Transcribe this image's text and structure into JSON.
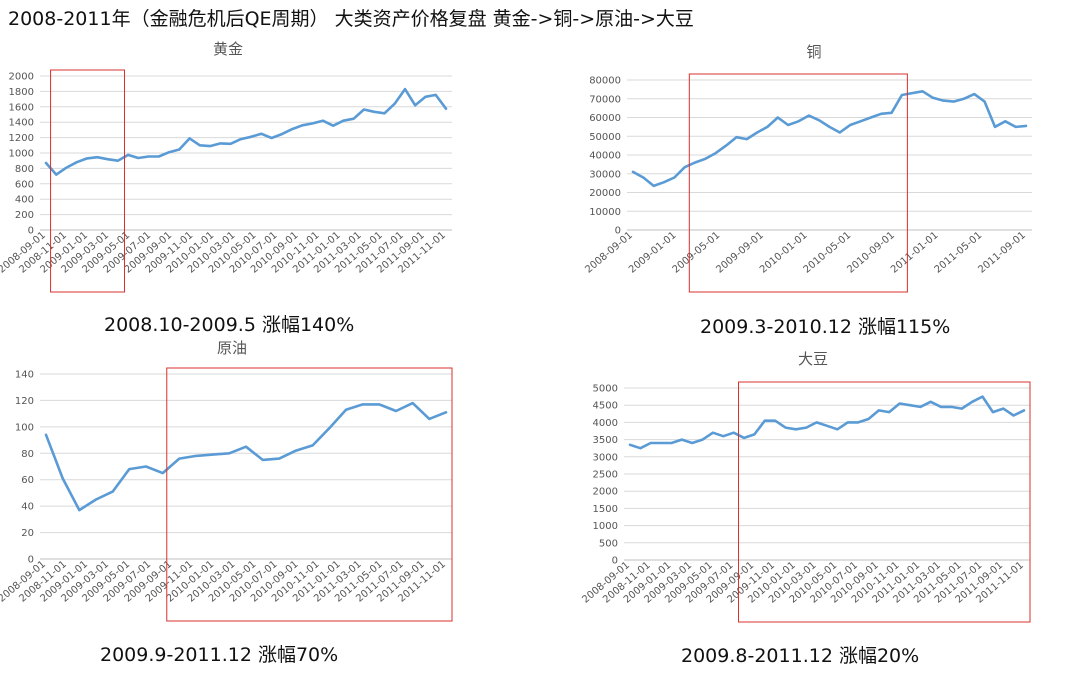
{
  "page": {
    "title": "2008-2011年（金融危机后QE周期） 大类资产价格复盘    黄金->铜->原油->大豆"
  },
  "charts": {
    "gold": {
      "caption": "2008.10-2009.5  涨幅140%"
    },
    "copper": {
      "caption": "2009.3-2010.12 涨幅115%"
    },
    "oil": {
      "caption": "2009.9-2011.12  涨幅70%"
    },
    "soy": {
      "caption": "2009.8-2011.12  涨幅20%"
    }
  },
  "colors": {
    "line": "#5b9bd5",
    "highlight": "#d9302c",
    "grid": "#d9d9d9"
  },
  "chart_data": [
    {
      "id": "gold",
      "type": "line",
      "title": "黄金",
      "x_tick_labels": [
        "2008-09-01",
        "2008-11-01",
        "2009-01-01",
        "2009-03-01",
        "2009-05-01",
        "2009-07-01",
        "2009-09-01",
        "2009-11-01",
        "2010-01-01",
        "2010-03-01",
        "2010-05-01",
        "2010-07-01",
        "2010-09-01",
        "2010-11-01",
        "2011-01-01",
        "2011-03-01",
        "2011-05-01",
        "2011-07-01",
        "2011-09-01",
        "2011-11-01"
      ],
      "y_ticks": [
        0,
        200,
        400,
        600,
        800,
        1000,
        1200,
        1400,
        1600,
        1800,
        2000
      ],
      "ylim": [
        0,
        2000
      ],
      "grid": true,
      "series": [
        {
          "values": [
            870,
            720,
            810,
            880,
            930,
            945,
            920,
            900,
            975,
            935,
            955,
            955,
            1010,
            1045,
            1190,
            1100,
            1090,
            1125,
            1120,
            1180,
            1210,
            1250,
            1195,
            1245,
            1310,
            1360,
            1385,
            1420,
            1355,
            1420,
            1445,
            1565,
            1535,
            1515,
            1640,
            1830,
            1620,
            1730,
            1755,
            1575
          ]
        }
      ],
      "highlight": {
        "from": "2008-10",
        "to": "2009-05"
      }
    },
    {
      "id": "copper",
      "type": "line",
      "title": "铜",
      "x_tick_labels": [
        "2008-09-01",
        "2009-01-01",
        "2009-05-01",
        "2009-09-01",
        "2010-01-01",
        "2010-05-01",
        "2010-09-01",
        "2011-01-01",
        "2011-05-01",
        "2011-09-01"
      ],
      "y_ticks": [
        0,
        10000,
        20000,
        30000,
        40000,
        50000,
        60000,
        70000,
        80000
      ],
      "ylim": [
        0,
        80000
      ],
      "grid": true,
      "series": [
        {
          "values": [
            31000,
            28000,
            23500,
            25500,
            28000,
            33500,
            36000,
            38000,
            41000,
            45000,
            49500,
            48500,
            52000,
            55000,
            60000,
            56000,
            58000,
            61000,
            58500,
            55000,
            52000,
            56000,
            58000,
            60000,
            62000,
            62500,
            72000,
            73000,
            74000,
            70500,
            69000,
            68500,
            70000,
            72500,
            68500,
            55000,
            58000,
            55000,
            55500
          ]
        }
      ],
      "highlight": {
        "from": "2009-03",
        "to": "2010-12"
      }
    },
    {
      "id": "oil",
      "type": "line",
      "title": "原油",
      "x_tick_labels": [
        "2008-09-01",
        "2008-11-01",
        "2009-01-01",
        "2009-03-01",
        "2009-05-01",
        "2009-07-01",
        "2009-09-01",
        "2009-11-01",
        "2010-01-01",
        "2010-03-01",
        "2010-05-01",
        "2010-07-01",
        "2010-09-01",
        "2010-11-01",
        "2011-01-01",
        "2011-03-01",
        "2011-05-01",
        "2011-07-01",
        "2011-09-01",
        "2011-11-01"
      ],
      "y_ticks": [
        0,
        20,
        40,
        60,
        80,
        100,
        120,
        140
      ],
      "ylim": [
        0,
        140
      ],
      "grid": true,
      "series": [
        {
          "values": [
            94,
            61,
            37,
            45,
            51,
            68,
            70,
            65,
            76,
            78,
            79,
            80,
            85,
            75,
            76,
            82,
            86,
            99,
            113,
            117,
            117,
            112,
            118,
            106,
            111
          ]
        }
      ],
      "highlight": {
        "from": "2009-09",
        "to": "2011-12"
      }
    },
    {
      "id": "soy",
      "type": "line",
      "title": "大豆",
      "x_tick_labels": [
        "2008-09-01",
        "2008-11-01",
        "2009-01-01",
        "2009-03-01",
        "2009-05-01",
        "2009-07-01",
        "2009-09-01",
        "2009-11-01",
        "2010-01-01",
        "2010-03-01",
        "2010-05-01",
        "2010-07-01",
        "2010-09-01",
        "2010-11-01",
        "2011-01-01",
        "2011-03-01",
        "2011-05-01",
        "2011-07-01",
        "2011-09-01",
        "2011-11-01"
      ],
      "y_ticks": [
        0,
        500,
        1000,
        1500,
        2000,
        2500,
        3000,
        3500,
        4000,
        4500,
        5000
      ],
      "ylim": [
        0,
        5000
      ],
      "grid": true,
      "series": [
        {
          "values": [
            3350,
            3250,
            3400,
            3400,
            3400,
            3500,
            3400,
            3500,
            3700,
            3600,
            3700,
            3550,
            3650,
            4050,
            4050,
            3850,
            3800,
            3850,
            4000,
            3900,
            3800,
            4000,
            4000,
            4100,
            4350,
            4300,
            4550,
            4500,
            4450,
            4600,
            4450,
            4450,
            4400,
            4600,
            4750,
            4300,
            4400,
            4200,
            4350
          ]
        }
      ],
      "highlight": {
        "from": "2009-08",
        "to": "2011-12"
      }
    }
  ]
}
